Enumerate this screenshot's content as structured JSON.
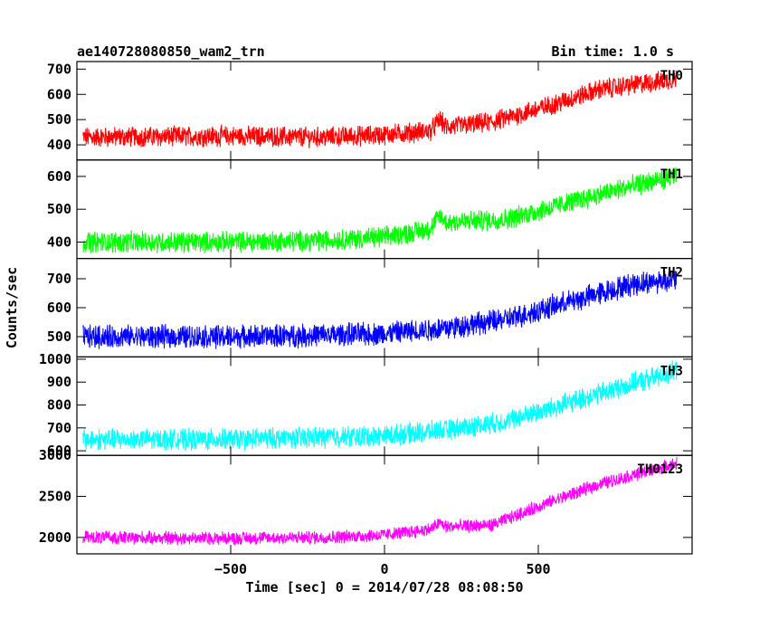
{
  "chart_data": {
    "type": "line",
    "title_left": "ae140728080850_wam2_trn",
    "title_right": "Bin time: 1.0 s",
    "xlabel": "Time [sec] 0 = 2014/07/28 08:08:50",
    "ylabel": "Counts/sec",
    "xlim": [
      -1000,
      1000
    ],
    "xticks": [
      -500,
      0,
      500
    ],
    "grid": false,
    "series": [
      {
        "name": "TH0",
        "color": "#ff0000",
        "ylim": [
          340,
          730
        ],
        "yticks": [
          400,
          500,
          600,
          700
        ],
        "anchors": [
          [
            -980,
            430
          ],
          [
            -500,
            435
          ],
          [
            -200,
            430
          ],
          [
            0,
            440
          ],
          [
            150,
            455
          ],
          [
            180,
            500
          ],
          [
            200,
            470
          ],
          [
            350,
            490
          ],
          [
            550,
            560
          ],
          [
            700,
            620
          ],
          [
            950,
            660
          ]
        ],
        "noise": 35
      },
      {
        "name": "TH1",
        "color": "#00ff00",
        "ylim": [
          350,
          650
        ],
        "yticks": [
          400,
          500,
          600
        ],
        "anchors": [
          [
            -980,
            400
          ],
          [
            -500,
            400
          ],
          [
            -200,
            405
          ],
          [
            0,
            415
          ],
          [
            150,
            440
          ],
          [
            180,
            480
          ],
          [
            200,
            460
          ],
          [
            400,
            470
          ],
          [
            600,
            520
          ],
          [
            800,
            570
          ],
          [
            950,
            600
          ]
        ],
        "noise": 28
      },
      {
        "name": "TH2",
        "color": "#0000ff",
        "ylim": [
          430,
          770
        ],
        "yticks": [
          500,
          600,
          700
        ],
        "anchors": [
          [
            -980,
            500
          ],
          [
            -500,
            500
          ],
          [
            -200,
            505
          ],
          [
            0,
            510
          ],
          [
            200,
            530
          ],
          [
            400,
            560
          ],
          [
            600,
            620
          ],
          [
            800,
            680
          ],
          [
            950,
            700
          ]
        ],
        "noise": 35
      },
      {
        "name": "TH3",
        "color": "#00ffff",
        "ylim": [
          580,
          1010
        ],
        "yticks": [
          600,
          700,
          800,
          900,
          1000
        ],
        "anchors": [
          [
            -980,
            650
          ],
          [
            -500,
            650
          ],
          [
            -200,
            660
          ],
          [
            0,
            665
          ],
          [
            200,
            690
          ],
          [
            400,
            730
          ],
          [
            600,
            810
          ],
          [
            800,
            890
          ],
          [
            950,
            950
          ]
        ],
        "noise": 40
      },
      {
        "name": "TH0123",
        "color": "#ff00ff",
        "ylim": [
          1800,
          3000
        ],
        "yticks": [
          2000,
          2500,
          3000
        ],
        "anchors": [
          [
            -980,
            2000
          ],
          [
            -500,
            1990
          ],
          [
            -200,
            2000
          ],
          [
            0,
            2030
          ],
          [
            150,
            2100
          ],
          [
            180,
            2180
          ],
          [
            200,
            2130
          ],
          [
            350,
            2150
          ],
          [
            550,
            2450
          ],
          [
            700,
            2650
          ],
          [
            950,
            2900
          ]
        ],
        "noise": 70
      }
    ]
  }
}
